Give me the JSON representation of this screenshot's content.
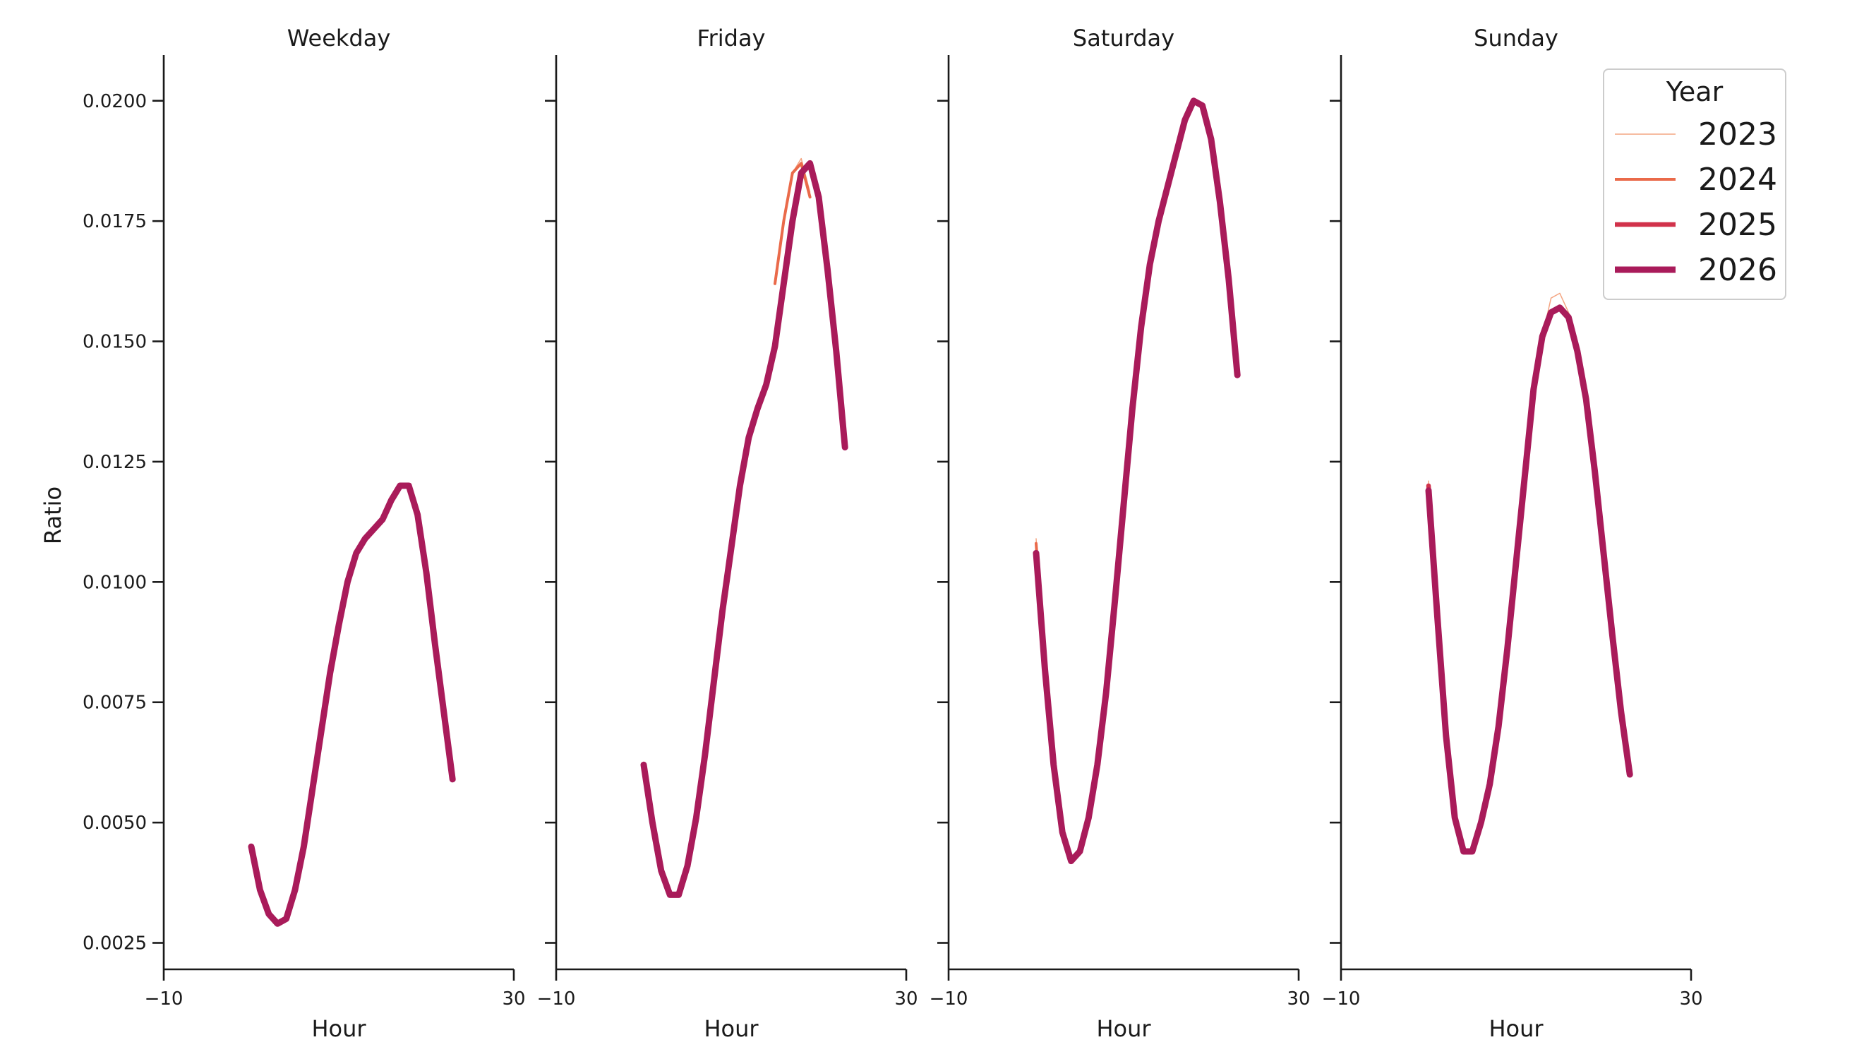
{
  "chart_data": {
    "type": "line",
    "xlabel": "Hour",
    "ylabel": "Ratio",
    "xlim": [
      -10,
      30
    ],
    "ylim": [
      0.00195,
      0.02095
    ],
    "xticks": [
      -10,
      30
    ],
    "xtick_labels": [
      "−10",
      "30"
    ],
    "yticks": [
      0.0025,
      0.005,
      0.0075,
      0.01,
      0.0125,
      0.015,
      0.0175,
      0.02
    ],
    "ytick_labels": [
      "0.0025",
      "0.0050",
      "0.0075",
      "0.0100",
      "0.0125",
      "0.0150",
      "0.0175",
      "0.0200"
    ],
    "grid": false,
    "legend": {
      "title": "Year",
      "placement": "top-right",
      "entries": [
        {
          "label": "2023",
          "color": "#f4a582",
          "width": 1.5
        },
        {
          "label": "2024",
          "color": "#ea6a4a",
          "width": 4
        },
        {
          "label": "2025",
          "color": "#d1324b",
          "width": 6.5
        },
        {
          "label": "2026",
          "color": "#a91b5a",
          "width": 9
        }
      ]
    },
    "panels": [
      {
        "title": "Weekday",
        "series": [
          {
            "name": "2026",
            "x": [
              0,
              1,
              2,
              3,
              4,
              5,
              6,
              7,
              8,
              9,
              10,
              11,
              12,
              13,
              14,
              15,
              16,
              17,
              18,
              19,
              20,
              21,
              22,
              23
            ],
            "y": [
              0.0045,
              0.0036,
              0.0031,
              0.0029,
              0.003,
              0.0036,
              0.0045,
              0.0057,
              0.0069,
              0.0081,
              0.0091,
              0.01,
              0.0106,
              0.0109,
              0.0111,
              0.0113,
              0.0117,
              0.012,
              0.012,
              0.0114,
              0.0102,
              0.0087,
              0.0073,
              0.0059
            ]
          }
        ]
      },
      {
        "title": "Friday",
        "series": [
          {
            "name": "2023",
            "x": [
              15,
              16,
              17,
              18,
              19
            ],
            "y": [
              0.0162,
              0.0175,
              0.0185,
              0.0188,
              0.0181
            ]
          },
          {
            "name": "2024",
            "x": [
              15,
              16,
              17,
              18,
              19
            ],
            "y": [
              0.0162,
              0.0175,
              0.0185,
              0.0187,
              0.018
            ]
          },
          {
            "name": "2026",
            "x": [
              0,
              1,
              2,
              3,
              4,
              5,
              6,
              7,
              8,
              9,
              10,
              11,
              12,
              13,
              14,
              15,
              16,
              17,
              18,
              19,
              20,
              21,
              22,
              23
            ],
            "y": [
              0.0062,
              0.005,
              0.004,
              0.0035,
              0.0035,
              0.0041,
              0.0051,
              0.0064,
              0.0079,
              0.0094,
              0.0107,
              0.012,
              0.013,
              0.0136,
              0.0141,
              0.0149,
              0.0162,
              0.0175,
              0.0185,
              0.0187,
              0.018,
              0.0165,
              0.0148,
              0.0128
            ]
          }
        ]
      },
      {
        "title": "Saturday",
        "series": [
          {
            "name": "2023",
            "x": [
              0,
              1,
              2
            ],
            "y": [
              0.0109,
              0.0084,
              0.0064
            ]
          },
          {
            "name": "2024",
            "x": [
              0,
              1,
              2
            ],
            "y": [
              0.0108,
              0.0083,
              0.0063
            ]
          },
          {
            "name": "2026",
            "x": [
              0,
              1,
              2,
              3,
              4,
              5,
              6,
              7,
              8,
              9,
              10,
              11,
              12,
              13,
              14,
              15,
              16,
              17,
              18,
              19,
              20,
              21,
              22,
              23
            ],
            "y": [
              0.0106,
              0.0082,
              0.0062,
              0.0048,
              0.0042,
              0.0044,
              0.0051,
              0.0062,
              0.0077,
              0.0096,
              0.0116,
              0.0136,
              0.0153,
              0.0166,
              0.0175,
              0.0182,
              0.0189,
              0.0196,
              0.02,
              0.0199,
              0.0192,
              0.0179,
              0.0163,
              0.0143
            ]
          }
        ]
      },
      {
        "title": "Sunday",
        "series": [
          {
            "name": "2023",
            "x": [
              0,
              1,
              2,
              3,
              4,
              5,
              6,
              7,
              8,
              9,
              10,
              11,
              12,
              13,
              14,
              15,
              16,
              17,
              18,
              19,
              20,
              21,
              22,
              23
            ],
            "y": [
              0.0121,
              0.0094,
              0.0069,
              0.0052,
              0.0044,
              0.0044,
              0.005,
              0.0058,
              0.007,
              0.0086,
              0.0104,
              0.0122,
              0.014,
              0.0151,
              0.0159,
              0.016,
              0.0156,
              0.0148,
              0.0138,
              0.0123,
              0.0106,
              0.0089,
              0.0073,
              0.006
            ]
          },
          {
            "name": "2025",
            "x": [
              0,
              1,
              2,
              3
            ],
            "y": [
              0.012,
              0.0094,
              0.0069,
              0.0052
            ]
          },
          {
            "name": "2026",
            "x": [
              0,
              1,
              2,
              3,
              4,
              5,
              6,
              7,
              8,
              9,
              10,
              11,
              12,
              13,
              14,
              15,
              16,
              17,
              18,
              19,
              20,
              21,
              22,
              23
            ],
            "y": [
              0.0119,
              0.0093,
              0.0068,
              0.0051,
              0.0044,
              0.0044,
              0.005,
              0.0058,
              0.007,
              0.0086,
              0.0104,
              0.0122,
              0.014,
              0.0151,
              0.0156,
              0.0157,
              0.0155,
              0.0148,
              0.0138,
              0.0123,
              0.0106,
              0.0089,
              0.0073,
              0.006
            ]
          }
        ]
      }
    ]
  }
}
